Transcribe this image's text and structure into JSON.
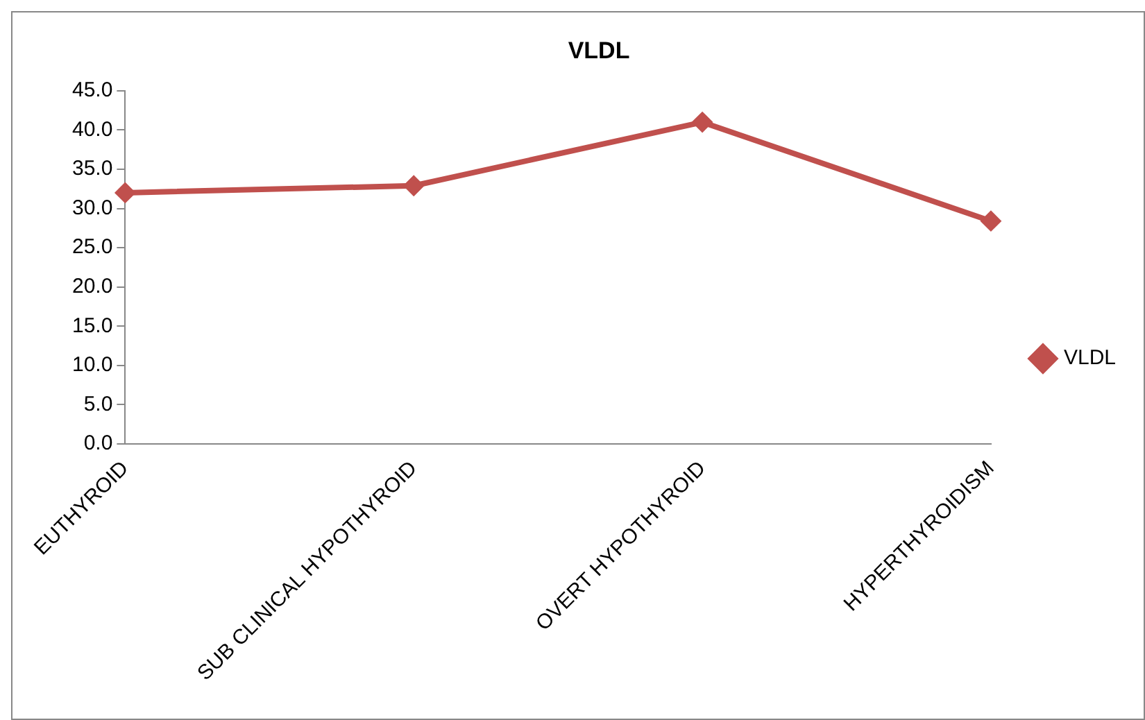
{
  "chart_data": {
    "type": "line",
    "title": "VLDL",
    "categories": [
      "EUTHYROID",
      "SUB CLINICAL HYPOTHYROID",
      "OVERT HYPOTHYROID",
      "HYPERTHYROIDISM"
    ],
    "series": [
      {
        "name": "VLDL",
        "color": "#c0504d",
        "values": [
          32.0,
          32.9,
          41.0,
          28.4
        ]
      }
    ],
    "ylim": [
      0,
      45
    ],
    "yticks": [
      {
        "value": 0,
        "label": "0.0"
      },
      {
        "value": 5,
        "label": "5.0"
      },
      {
        "value": 10,
        "label": "10.0"
      },
      {
        "value": 15,
        "label": "15.0"
      },
      {
        "value": 20,
        "label": "20.0"
      },
      {
        "value": 25,
        "label": "25.0"
      },
      {
        "value": 30,
        "label": "30.0"
      },
      {
        "value": 35,
        "label": "35.0"
      },
      {
        "value": 40,
        "label": "40.0"
      },
      {
        "value": 45,
        "label": "45.0"
      }
    ],
    "grid": false,
    "legend": "right",
    "marker": "diamond",
    "line_style": "solid"
  }
}
